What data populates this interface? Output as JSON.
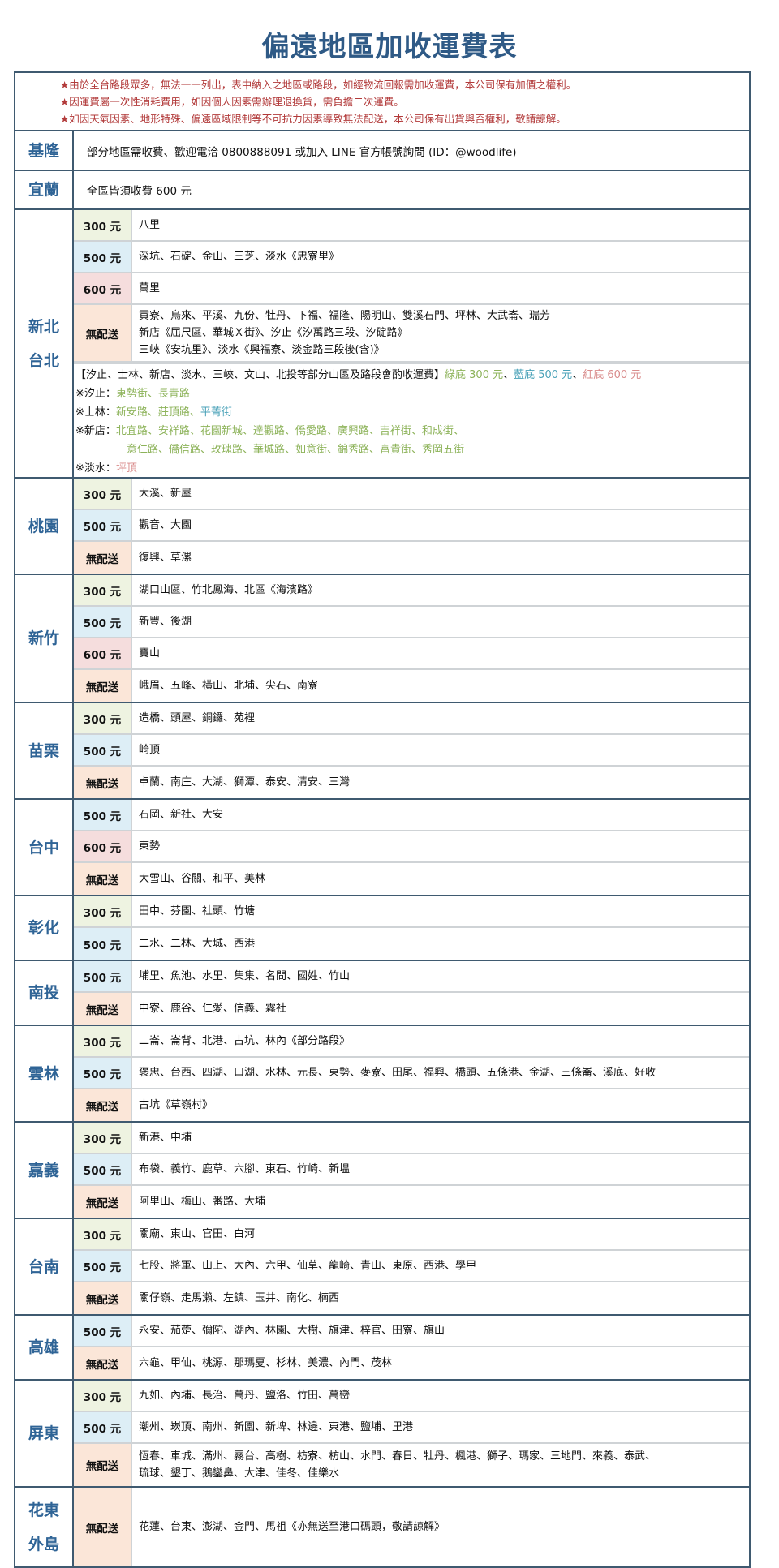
{
  "title": "偏遠地區加收運費表",
  "notes": [
    "★由於全台路段眾多，無法一一列出，表中納入之地區或路段，如經物流回報需加收運費，本公司保有加價之權利。",
    "★因運費屬一次性消耗費用，如因個人因素需辦理退換貨，需負擔二次運費。",
    "★如因天氣因素、地形特殊、偏遠區域限制等不可抗力因素導致無法配送，本公司保有出貨與否權利，敬請諒解。"
  ],
  "colors": {
    "title": "#2f5a86",
    "notes": "#b23a3a",
    "p300": "#eef3e1",
    "p500": "#ddeef6",
    "p600": "#f5dddd",
    "no_delivery": "#fbe6d8",
    "green": "#8db35a",
    "blue": "#4aa2b8",
    "red": "#d98c8c"
  },
  "keelung": {
    "label": "基隆",
    "text": "部分地區需收費、歡迎電洽 0800888091 或加入 LINE 官方帳號詢問 (ID：@woodlife)"
  },
  "yilan": {
    "label": "宜蘭",
    "text": "全區皆須收費 600 元"
  },
  "sections": [
    {
      "labels": [
        "新北",
        "台北"
      ],
      "rows": [
        {
          "price": "300 元",
          "type": "p300",
          "areas": [
            "八里"
          ]
        },
        {
          "price": "500 元",
          "type": "p500",
          "areas": [
            "深坑、石碇、金山、三芝、淡水《忠寮里》"
          ]
        },
        {
          "price": "600 元",
          "type": "p600",
          "areas": [
            "萬里"
          ]
        },
        {
          "price": "無配送",
          "type": "pno",
          "areas": [
            "貢寮、烏來、平溪、九份、牡丹、下福、福隆、陽明山、雙溪石門、坪林、大武崙、瑞芳",
            "新店《屈尺區、華城Ｘ街》、汐止《汐萬路三段、汐碇路》",
            "三峽《安坑里》、淡水《興福寮、淡金路三段後(含)》"
          ]
        }
      ]
    },
    {
      "labels": [
        "桃園"
      ],
      "rows": [
        {
          "price": "300 元",
          "type": "p300",
          "areas": [
            "大溪、新屋"
          ]
        },
        {
          "price": "500 元",
          "type": "p500",
          "areas": [
            "觀音、大園"
          ]
        },
        {
          "price": "無配送",
          "type": "pno",
          "areas": [
            "復興、草漯"
          ]
        }
      ]
    },
    {
      "labels": [
        "新竹"
      ],
      "rows": [
        {
          "price": "300 元",
          "type": "p300",
          "areas": [
            "湖口山區、竹北鳳海、北區《海濱路》"
          ]
        },
        {
          "price": "500 元",
          "type": "p500",
          "areas": [
            "新豐、後湖"
          ]
        },
        {
          "price": "600 元",
          "type": "p600",
          "areas": [
            "寶山"
          ]
        },
        {
          "price": "無配送",
          "type": "pno",
          "areas": [
            "峨眉、五峰、橫山、北埔、尖石、南寮"
          ]
        }
      ]
    },
    {
      "labels": [
        "苗栗"
      ],
      "rows": [
        {
          "price": "300 元",
          "type": "p300",
          "areas": [
            "造橋、頭屋、銅鑼、苑裡"
          ]
        },
        {
          "price": "500 元",
          "type": "p500",
          "areas": [
            "崎頂"
          ]
        },
        {
          "price": "無配送",
          "type": "pno",
          "areas": [
            "卓蘭、南庄、大湖、獅潭、泰安、清安、三灣"
          ]
        }
      ]
    },
    {
      "labels": [
        "台中"
      ],
      "rows": [
        {
          "price": "500 元",
          "type": "p500",
          "areas": [
            "石岡、新社、大安"
          ]
        },
        {
          "price": "600 元",
          "type": "p600",
          "areas": [
            "東勢"
          ]
        },
        {
          "price": "無配送",
          "type": "pno",
          "areas": [
            "大雪山、谷關、和平、美林"
          ]
        }
      ]
    },
    {
      "labels": [
        "彰化"
      ],
      "rows": [
        {
          "price": "300 元",
          "type": "p300",
          "areas": [
            "田中、芬園、社頭、竹塘"
          ]
        },
        {
          "price": "500 元",
          "type": "p500",
          "areas": [
            "二水、二林、大城、西港"
          ]
        }
      ]
    },
    {
      "labels": [
        "南投"
      ],
      "rows": [
        {
          "price": "500 元",
          "type": "p500",
          "areas": [
            "埔里、魚池、水里、集集、名間、國姓、竹山"
          ]
        },
        {
          "price": "無配送",
          "type": "pno",
          "areas": [
            "中寮、鹿谷、仁愛、信義、霧社"
          ]
        }
      ]
    },
    {
      "labels": [
        "雲林"
      ],
      "rows": [
        {
          "price": "300 元",
          "type": "p300",
          "areas": [
            "二崙、崙背、北港、古坑、林內《部分路段》"
          ]
        },
        {
          "price": "500 元",
          "type": "p500",
          "areas": [
            "褒忠、台西、四湖、口湖、水林、元長、東勢、麥寮、田尾、福興、橋頭、五條港、金湖、三條崙、溪底、好收"
          ]
        },
        {
          "price": "無配送",
          "type": "pno",
          "areas": [
            "古坑《草嶺村》"
          ]
        }
      ]
    },
    {
      "labels": [
        "嘉義"
      ],
      "rows": [
        {
          "price": "300 元",
          "type": "p300",
          "areas": [
            "新港、中埔"
          ]
        },
        {
          "price": "500 元",
          "type": "p500",
          "areas": [
            "布袋、義竹、鹿草、六腳、東石、竹崎、新塭"
          ]
        },
        {
          "price": "無配送",
          "type": "pno",
          "areas": [
            "阿里山、梅山、番路、大埔"
          ]
        }
      ]
    },
    {
      "labels": [
        "台南"
      ],
      "rows": [
        {
          "price": "300 元",
          "type": "p300",
          "areas": [
            "關廟、東山、官田、白河"
          ]
        },
        {
          "price": "500 元",
          "type": "p500",
          "areas": [
            "七股、將軍、山上、大內、六甲、仙草、龍崎、青山、東原、西港、學甲"
          ]
        },
        {
          "price": "無配送",
          "type": "pno",
          "areas": [
            "關仔嶺、走馬瀨、左鎮、玉井、南化、楠西"
          ]
        }
      ]
    },
    {
      "labels": [
        "高雄"
      ],
      "rows": [
        {
          "price": "500 元",
          "type": "p500",
          "areas": [
            "永安、茄萣、彌陀、湖內、林園、大樹、旗津、梓官、田寮、旗山"
          ]
        },
        {
          "price": "無配送",
          "type": "pno",
          "areas": [
            "六龜、甲仙、桃源、那瑪夏、杉林、美濃、內門、茂林"
          ]
        }
      ]
    },
    {
      "labels": [
        "屏東"
      ],
      "rows": [
        {
          "price": "300 元",
          "type": "p300",
          "areas": [
            "九如、內埔、長治、萬丹、鹽洛、竹田、萬巒"
          ]
        },
        {
          "price": "500 元",
          "type": "p500",
          "areas": [
            "潮州、崁頂、南州、新園、新埤、林邊、東港、鹽埔、里港"
          ]
        },
        {
          "price": "無配送",
          "type": "pno",
          "areas": [
            "恆春、車城、滿州、霧台、高樹、枋寮、枋山、水門、春日、牡丹、楓港、獅子、瑪家、三地門、來義、泰武、",
            "琉球、墾丁、鵝鑾鼻、大津、佳冬、佳樂水"
          ]
        }
      ]
    },
    {
      "labels": [
        "花東",
        "外島"
      ],
      "rows": [
        {
          "price": "無配送",
          "type": "pno",
          "areas": [
            "花蓮、台東、澎湖、金門、馬祖《亦無送至港口碼頭，敬請諒解》"
          ]
        }
      ]
    }
  ],
  "taipei_extra": {
    "header": "【汐止、士林、新店、淡水、三峽、文山、北投等部分山區及路段會酌收運費】",
    "legend_green": "綠底 300 元",
    "legend_blue": "藍底 500 元",
    "legend_red": "紅底 600 元",
    "xizhi_label": "※汐止：",
    "xizhi_green": "東勢街、長青路",
    "shilin_label": "※士林：",
    "shilin_green": "新安路、莊頂路、",
    "shilin_blue": "平菁街",
    "xindian_label": "※新店：",
    "xindian_green_1": "北宜路、安祥路、花園新城、達觀路、僑愛路、廣興路、吉祥街、和成街、",
    "xindian_green_2": "意仁路、僑信路、玫瑰路、華城路、如意街、錦秀路、富貴街、秀岡五街",
    "tamsui_label": "※淡水：",
    "tamsui_red": "坪頂"
  }
}
